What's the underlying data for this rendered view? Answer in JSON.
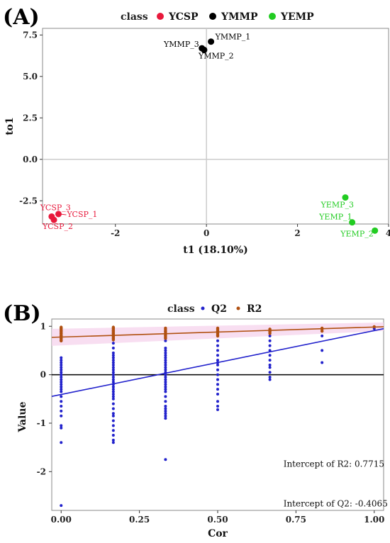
{
  "chart_data": [
    {
      "type": "scatter",
      "panel_label": "(A)",
      "legend": {
        "title": "class",
        "position": "top"
      },
      "xlabel": "t1 (18.10%)",
      "ylabel": "to1",
      "xlim": [
        -3.6,
        4.0
      ],
      "ylim": [
        -3.9,
        7.9
      ],
      "x_ticks": [
        -2,
        0,
        2,
        4
      ],
      "y_ticks": [
        -2.5,
        0.0,
        2.5,
        5.0,
        7.5
      ],
      "grid": false,
      "series": [
        {
          "name": "YCSP",
          "color": "#e8193c",
          "points": [
            {
              "label": "YCSP_1",
              "x": -3.25,
              "y": -3.3
            },
            {
              "label": "YCSP_2",
              "x": -3.35,
              "y": -3.65
            },
            {
              "label": "YCSP_3",
              "x": -3.4,
              "y": -3.45
            }
          ]
        },
        {
          "name": "YMMP",
          "color": "#000000",
          "points": [
            {
              "label": "YMMP_1",
              "x": 0.1,
              "y": 7.1
            },
            {
              "label": "YMMP_2",
              "x": -0.05,
              "y": 6.6
            },
            {
              "label": "YMMP_3",
              "x": -0.1,
              "y": 6.7
            }
          ]
        },
        {
          "name": "YEMP",
          "color": "#22cc22",
          "points": [
            {
              "label": "YEMP_1",
              "x": 3.2,
              "y": -3.8
            },
            {
              "label": "YEMP_2",
              "x": 3.7,
              "y": -4.3
            },
            {
              "label": "YEMP_3",
              "x": 3.05,
              "y": -2.3
            }
          ]
        }
      ]
    },
    {
      "type": "scatter",
      "panel_label": "(B)",
      "legend": {
        "title": "class",
        "position": "top"
      },
      "xlabel": "Cor",
      "ylabel": "Value",
      "xlim": [
        -0.03,
        1.03
      ],
      "ylim": [
        -2.8,
        1.15
      ],
      "x_ticks": [
        0.0,
        0.25,
        0.5,
        0.75,
        1.0
      ],
      "x_tick_labels": [
        "0.00",
        "0.25",
        "0.50",
        "0.75",
        "1.00"
      ],
      "y_ticks": [
        -2,
        -1,
        0,
        1
      ],
      "grid": false,
      "series": [
        {
          "name": "Q2",
          "color": "#2222cc",
          "groups": [
            {
              "x": 0.0,
              "values": [
                0.95,
                0.9,
                0.85,
                0.8,
                0.75,
                0.7,
                0.35,
                0.3,
                0.25,
                0.2,
                0.15,
                0.1,
                0.05,
                0.0,
                -0.05,
                -0.1,
                -0.15,
                -0.2,
                -0.25,
                -0.3,
                -0.35,
                -0.45,
                -0.55,
                -0.65,
                -0.75,
                -0.85,
                -1.05,
                -1.1,
                -1.4,
                -2.7
              ]
            },
            {
              "x": 0.1667,
              "values": [
                0.95,
                0.85,
                0.75,
                0.65,
                0.55,
                0.45,
                0.4,
                0.35,
                0.3,
                0.25,
                0.2,
                0.15,
                0.1,
                0.05,
                0.0,
                -0.05,
                -0.1,
                -0.15,
                -0.2,
                -0.25,
                -0.3,
                -0.35,
                -0.4,
                -0.45,
                -0.5,
                -0.6,
                -0.7,
                -0.8,
                -0.85,
                -0.95,
                -1.05,
                -1.15,
                -1.25,
                -1.35,
                -1.4
              ]
            },
            {
              "x": 0.3333,
              "values": [
                0.9,
                0.8,
                0.7,
                0.55,
                0.5,
                0.45,
                0.4,
                0.35,
                0.3,
                0.25,
                0.2,
                0.15,
                0.1,
                0.05,
                0.0,
                -0.05,
                -0.1,
                -0.15,
                -0.2,
                -0.25,
                -0.3,
                -0.35,
                -0.45,
                -0.55,
                -0.65,
                -0.7,
                -0.75,
                -0.8,
                -0.85,
                -0.9,
                -1.75
              ]
            },
            {
              "x": 0.5,
              "values": [
                0.9,
                0.8,
                0.7,
                0.6,
                0.5,
                0.4,
                0.3,
                0.25,
                0.2,
                0.1,
                0.0,
                -0.1,
                -0.2,
                -0.3,
                -0.4,
                -0.55,
                -0.65,
                -0.72
              ]
            },
            {
              "x": 0.6667,
              "values": [
                0.9,
                0.8,
                0.7,
                0.6,
                0.5,
                0.4,
                0.3,
                0.2,
                0.15,
                0.05,
                -0.05,
                -0.1
              ]
            },
            {
              "x": 0.8333,
              "values": [
                0.9,
                0.8,
                0.5,
                0.25
              ]
            },
            {
              "x": 1.0,
              "values": [
                0.95
              ]
            }
          ],
          "regression": {
            "intercept": -0.4065,
            "end": [
              1.03,
              0.95
            ]
          }
        },
        {
          "name": "R2",
          "color": "#b05010",
          "groups": [
            {
              "x": 0.0,
              "values": [
                0.98,
                0.95,
                0.92,
                0.9,
                0.87,
                0.85,
                0.82,
                0.8,
                0.78,
                0.75,
                0.72,
                0.7
              ]
            },
            {
              "x": 0.1667,
              "values": [
                0.98,
                0.95,
                0.92,
                0.9,
                0.87,
                0.85,
                0.82,
                0.8,
                0.78,
                0.75,
                0.72
              ]
            },
            {
              "x": 0.3333,
              "values": [
                0.96,
                0.93,
                0.9,
                0.88,
                0.85,
                0.82,
                0.8,
                0.77,
                0.75
              ]
            },
            {
              "x": 0.5,
              "values": [
                0.96,
                0.93,
                0.9,
                0.88,
                0.85,
                0.82,
                0.8
              ]
            },
            {
              "x": 0.6667,
              "values": [
                0.94,
                0.92,
                0.9,
                0.88,
                0.85
              ]
            },
            {
              "x": 0.8333,
              "values": [
                0.96,
                0.94,
                0.9
              ]
            },
            {
              "x": 1.0,
              "values": [
                0.99
              ]
            }
          ],
          "regression": {
            "intercept": 0.7715,
            "end": [
              1.03,
              0.99
            ]
          }
        }
      ],
      "annotations": [
        {
          "text": "Intercept of R2: 0.7715",
          "x": 0.71,
          "y": -1.9
        },
        {
          "text": "Intercept of Q2: -0.4065",
          "x": 0.71,
          "y": -2.72
        }
      ]
    }
  ]
}
